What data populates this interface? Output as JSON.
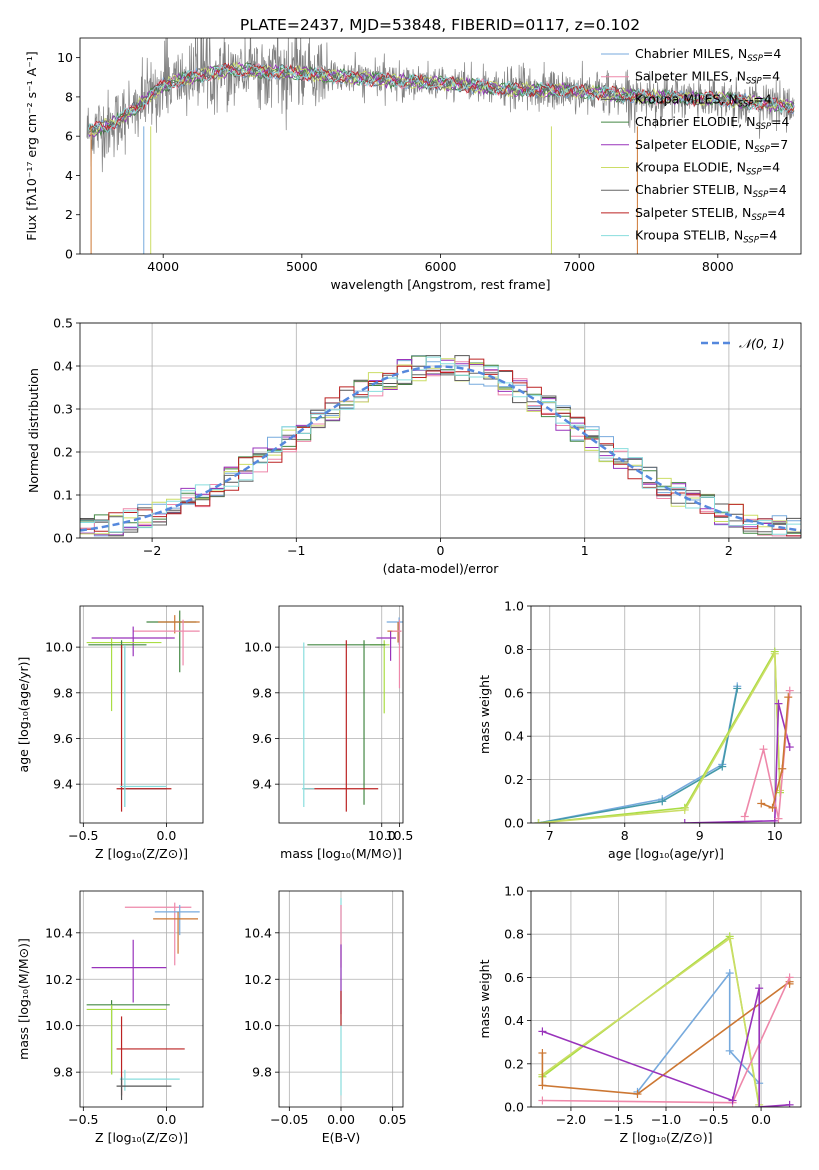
{
  "figure": {
    "title": "PLATE=2437, MJD=53848, FIBERID=0117, z=0.102"
  },
  "series_colors": [
    "#77aadd",
    "#ee88aa",
    "#555555",
    "#448844",
    "#9933bb",
    "#ccdd66",
    "#666666",
    "#bb2222",
    "#88dddd",
    "#cc7733",
    "#aadd44",
    "#4499aa"
  ],
  "chart_data": [
    {
      "id": "spectrum",
      "type": "line",
      "xlabel": "wavelength [Angstrom, rest frame]",
      "ylabel": "Flux [fλ10⁻¹⁷ erg cm⁻² s⁻¹ A⁻¹]",
      "xlim": [
        3400,
        8600
      ],
      "ylim": [
        0,
        11
      ],
      "xticks": [
        4000,
        5000,
        6000,
        7000,
        8000
      ],
      "yticks": [
        0,
        2,
        4,
        6,
        8,
        10
      ],
      "legend_position": "top-right",
      "legend": [
        {
          "label": "Chabrier MILES, N",
          "sub": "SSP",
          "eq": "=4",
          "color": "#77aadd"
        },
        {
          "label": "Salpeter MILES, N",
          "sub": "SSP",
          "eq": "=4",
          "color": "#ee88aa"
        },
        {
          "label": "Kroupa MILES, N",
          "sub": "SSP",
          "eq": "=4",
          "color": "#555555"
        },
        {
          "label": "Chabrier ELODIE, N",
          "sub": "SSP",
          "eq": "=4",
          "color": "#448844"
        },
        {
          "label": "Salpeter ELODIE, N",
          "sub": "SSP",
          "eq": "=7",
          "color": "#9933bb"
        },
        {
          "label": "Kroupa ELODIE, N",
          "sub": "SSP",
          "eq": "=4",
          "color": "#ccdd66"
        },
        {
          "label": "Chabrier STELIB, N",
          "sub": "SSP",
          "eq": "=4",
          "color": "#666666"
        },
        {
          "label": "Salpeter STELIB, N",
          "sub": "SSP",
          "eq": "=4",
          "color": "#bb2222"
        },
        {
          "label": "Kroupa STELIB, N",
          "sub": "SSP",
          "eq": "=4",
          "color": "#88dddd"
        }
      ],
      "data_series": {
        "wavelength_range": [
          3450,
          8550
        ],
        "continuum": [
          [
            3450,
            6.2
          ],
          [
            3650,
            6.7
          ],
          [
            3800,
            7.4
          ],
          [
            4000,
            8.6
          ],
          [
            4200,
            9.0
          ],
          [
            4500,
            9.4
          ],
          [
            5000,
            9.2
          ],
          [
            5500,
            8.9
          ],
          [
            6000,
            8.7
          ],
          [
            6500,
            8.4
          ],
          [
            7000,
            8.3
          ],
          [
            7500,
            8.0
          ],
          [
            8000,
            7.9
          ],
          [
            8550,
            7.5
          ]
        ],
        "model_series": [
          "Chabrier MILES",
          "Salpeter MILES",
          "Kroupa MILES",
          "Chabrier ELODIE",
          "Salpeter ELODIE",
          "Kroupa ELODIE",
          "Chabrier STELIB",
          "Salpeter STELIB",
          "Kroupa STELIB"
        ],
        "data_color": "#808080"
      }
    },
    {
      "id": "residuals",
      "type": "line",
      "xlabel": "(data-model)/error",
      "ylabel": "Normed distribution",
      "xlim": [
        -2.5,
        2.5
      ],
      "ylim": [
        0,
        0.5
      ],
      "xticks": [
        -2,
        -1,
        0,
        1,
        2
      ],
      "xtick_labels": [
        "−2",
        "−1",
        "0",
        "1",
        "2"
      ],
      "yticks": [
        0,
        0.1,
        0.2,
        0.3,
        0.4,
        0.5
      ],
      "ytick_labels": [
        "0.0",
        "0.1",
        "0.2",
        "0.3",
        "0.4",
        "0.5"
      ],
      "legend_position": "top-right",
      "legend_label": "𝒩(0, 1)",
      "reference_curve": {
        "name": "𝒩(0, 1)",
        "mean": 0,
        "sigma": 1,
        "color": "#5588dd",
        "dash": true
      },
      "bin_width": 0.1,
      "histograms_note": "nine step histograms, one per model"
    },
    {
      "id": "age_vs_Z",
      "type": "scatter",
      "xlabel": "Z [log₁₀(Z/Z⊙)]",
      "ylabel": "age  [log₁₀(age/yr)]",
      "xlim": [
        -0.52,
        0.22
      ],
      "ylim": [
        9.23,
        10.18
      ],
      "xticks": [
        -0.5,
        0.0
      ],
      "xtick_labels": [
        "−0.5",
        "0.0"
      ],
      "yticks": [
        9.4,
        9.6,
        9.8,
        10.0
      ],
      "ytick_labels": [
        "9.4",
        "9.6",
        "9.8",
        "10.0"
      ],
      "points": [
        {
          "x": 0.08,
          "y": 10.11,
          "xerr": [
            0.2,
            0.1
          ],
          "yerr": [
            0.22,
            0.05
          ],
          "color": "#448844"
        },
        {
          "x": 0.05,
          "y": 10.11,
          "xerr": [
            0.1,
            0.15
          ],
          "yerr": [
            0.05,
            0.03
          ],
          "color": "#cc7733"
        },
        {
          "x": 0.1,
          "y": 10.07,
          "xerr": [
            0.3,
            0.1
          ],
          "yerr": [
            0.15,
            0.05
          ],
          "color": "#ee88aa"
        },
        {
          "x": -0.2,
          "y": 10.04,
          "xerr": [
            0.25,
            0.25
          ],
          "yerr": [
            0.08,
            0.05
          ],
          "color": "#9933bb"
        },
        {
          "x": -0.33,
          "y": 10.02,
          "xerr": [
            0.15,
            0.3
          ],
          "yerr": [
            0.3,
            0.02
          ],
          "color": "#aadd44"
        },
        {
          "x": -0.27,
          "y": 10.01,
          "xerr": [
            0.2,
            0.15
          ],
          "yerr": [
            0.2,
            0.02
          ],
          "color": "#448844"
        },
        {
          "x": -0.25,
          "y": 9.38,
          "xerr": [
            0.03,
            0.25
          ],
          "yerr": [
            0.08,
            0.62
          ],
          "color": "#4499aa"
        },
        {
          "x": -0.27,
          "y": 9.38,
          "xerr": [
            0.03,
            0.3
          ],
          "yerr": [
            0.1,
            0.63
          ],
          "color": "#bb2222"
        },
        {
          "x": -0.25,
          "y": 9.39,
          "xerr": [
            0.03,
            0.25
          ],
          "yerr": [
            0.09,
            0.62
          ],
          "color": "#88dddd"
        }
      ]
    },
    {
      "id": "age_vs_mass",
      "type": "scatter",
      "xlabel": "mass [log₁₀(M/M⊙)]",
      "ylabel": "",
      "xlim": [
        7.1,
        10.6
      ],
      "ylim": [
        9.23,
        10.18
      ],
      "xticks": [
        7.5,
        10.0,
        10.5
      ],
      "xtick_labels": [
        "",
        "10.0",
        "10.5"
      ],
      "xticks_auto": [
        9.0,
        10.0,
        10.5
      ],
      "yticks": [
        9.4,
        9.6,
        9.8,
        10.0
      ],
      "ytick_labels": [
        "9.4",
        "9.6",
        "9.8",
        "10.0"
      ],
      "points": [
        {
          "x": 10.49,
          "y": 10.11,
          "xerr": [
            0.35,
            0.1
          ],
          "yerr": [
            0.1,
            0.02
          ],
          "color": "#77aadd"
        },
        {
          "x": 10.46,
          "y": 10.07,
          "xerr": [
            0.3,
            0.08
          ],
          "yerr": [
            0.05,
            0.04
          ],
          "color": "#cc7733"
        },
        {
          "x": 10.5,
          "y": 10.07,
          "xerr": [
            0.2,
            0.06
          ],
          "yerr": [
            0.25,
            0.05
          ],
          "color": "#ee88aa"
        },
        {
          "x": 10.25,
          "y": 10.04,
          "xerr": [
            0.4,
            0.15
          ],
          "yerr": [
            0.1,
            0.03
          ],
          "color": "#9933bb"
        },
        {
          "x": 10.07,
          "y": 10.01,
          "xerr": [
            0.4,
            0.15
          ],
          "yerr": [
            0.3,
            0.02
          ],
          "color": "#aadd44"
        },
        {
          "x": 9.5,
          "y": 10.01,
          "xerr": [
            1.6,
            0.6
          ],
          "yerr": [
            0.7,
            0.02
          ],
          "color": "#448844"
        },
        {
          "x": 9.0,
          "y": 9.38,
          "xerr": [
            1.2,
            0.9
          ],
          "yerr": [
            0.1,
            0.65
          ],
          "color": "#bb2222"
        },
        {
          "x": 7.8,
          "y": 9.38,
          "xerr": [
            0.05,
            0.3
          ],
          "yerr": [
            0.08,
            0.64
          ],
          "color": "#88dddd"
        }
      ]
    },
    {
      "id": "weight_vs_age",
      "type": "line",
      "xlabel": "age  [log₁₀(age/yr)]",
      "ylabel": "mass weight",
      "xlim": [
        6.75,
        10.35
      ],
      "ylim": [
        0,
        1.0
      ],
      "xticks": [
        7,
        8,
        9,
        10
      ],
      "yticks": [
        0,
        0.2,
        0.4,
        0.6,
        0.8,
        1.0
      ],
      "ytick_labels": [
        "0.0",
        "0.2",
        "0.4",
        "0.6",
        "0.8",
        "1.0"
      ],
      "series": [
        {
          "color": "#77aadd",
          "x": [
            6.85,
            8.5,
            9.3,
            9.5
          ],
          "y": [
            0.0,
            0.11,
            0.27,
            0.63
          ]
        },
        {
          "color": "#4499aa",
          "x": [
            6.85,
            8.5,
            9.3,
            9.5
          ],
          "y": [
            0.0,
            0.1,
            0.26,
            0.62
          ]
        },
        {
          "color": "#aadd44",
          "x": [
            6.85,
            8.8,
            10.0,
            10.07
          ],
          "y": [
            0.0,
            0.07,
            0.79,
            0.14
          ]
        },
        {
          "color": "#ccdd66",
          "x": [
            6.85,
            8.8,
            10.0,
            10.07
          ],
          "y": [
            0.0,
            0.06,
            0.78,
            0.15
          ]
        },
        {
          "color": "#9933bb",
          "x": [
            8.8,
            10.0,
            10.05,
            10.2
          ],
          "y": [
            0.0,
            0.01,
            0.55,
            0.35
          ]
        },
        {
          "color": "#ee88aa",
          "x": [
            9.6,
            9.85,
            10.05,
            10.2
          ],
          "y": [
            0.03,
            0.34,
            0.02,
            0.61
          ]
        },
        {
          "color": "#cc7733",
          "x": [
            9.82,
            9.97,
            10.1,
            10.18
          ],
          "y": [
            0.09,
            0.07,
            0.25,
            0.58
          ]
        }
      ]
    },
    {
      "id": "mass_vs_Z",
      "type": "scatter",
      "xlabel": "Z [log₁₀(Z/Z⊙)]",
      "ylabel": "mass [log₁₀(M/M⊙)]",
      "xlim": [
        -0.52,
        0.22
      ],
      "ylim": [
        9.65,
        10.58
      ],
      "xticks": [
        -0.5,
        0.0
      ],
      "xtick_labels": [
        "−0.5",
        "0.0"
      ],
      "yticks": [
        9.8,
        10.0,
        10.2,
        10.4
      ],
      "ytick_labels": [
        "9.8",
        "10.0",
        "10.2",
        "10.4"
      ],
      "points": [
        {
          "x": 0.05,
          "y": 10.51,
          "xerr": [
            0.3,
            0.1
          ],
          "yerr": [
            0.25,
            0.02
          ],
          "color": "#ee88aa"
        },
        {
          "x": 0.08,
          "y": 10.49,
          "xerr": [
            0.15,
            0.12
          ],
          "yerr": [
            0.1,
            0.03
          ],
          "color": "#77aadd"
        },
        {
          "x": 0.07,
          "y": 10.46,
          "xerr": [
            0.15,
            0.12
          ],
          "yerr": [
            0.15,
            0.03
          ],
          "color": "#cc7733"
        },
        {
          "x": -0.2,
          "y": 10.25,
          "xerr": [
            0.25,
            0.2
          ],
          "yerr": [
            0.15,
            0.12
          ],
          "color": "#9933bb"
        },
        {
          "x": -0.33,
          "y": 10.09,
          "xerr": [
            0.15,
            0.35
          ],
          "yerr": [
            0.3,
            0.02
          ],
          "color": "#448844"
        },
        {
          "x": -0.33,
          "y": 10.07,
          "xerr": [
            0.15,
            0.33
          ],
          "yerr": [
            0.28,
            0.02
          ],
          "color": "#aadd44"
        },
        {
          "x": -0.27,
          "y": 9.9,
          "xerr": [
            0.03,
            0.38
          ],
          "yerr": [
            0.2,
            0.14
          ],
          "color": "#bb2222"
        },
        {
          "x": -0.25,
          "y": 9.77,
          "xerr": [
            0.03,
            0.33
          ],
          "yerr": [
            0.05,
            0.04
          ],
          "color": "#88dddd"
        },
        {
          "x": -0.27,
          "y": 9.74,
          "xerr": [
            0.03,
            0.3
          ],
          "yerr": [
            0.06,
            0.04
          ],
          "color": "#555555"
        }
      ]
    },
    {
      "id": "mass_vs_EBV",
      "type": "scatter",
      "xlabel": "E(B-V)",
      "ylabel": "",
      "xlim": [
        -0.06,
        0.06
      ],
      "ylim": [
        9.65,
        10.58
      ],
      "xticks": [
        -0.05,
        0.0,
        0.05
      ],
      "xtick_labels": [
        "−0.05",
        "0.00",
        "0.05"
      ],
      "yticks": [
        9.8,
        10.0,
        10.2,
        10.4
      ],
      "ytick_labels": [
        "9.8",
        "10.0",
        "10.2",
        "10.4"
      ],
      "points": [
        {
          "x": 0.0,
          "y": 10.25,
          "xerr": [
            0,
            0
          ],
          "yerr": [
            0.55,
            0.3
          ],
          "color": "#88dddd"
        },
        {
          "x": 0.0,
          "y": 10.4,
          "xerr": [
            0,
            0
          ],
          "yerr": [
            0.15,
            0.12
          ],
          "color": "#ee88aa"
        },
        {
          "x": 0.0,
          "y": 10.2,
          "xerr": [
            0,
            0
          ],
          "yerr": [
            0.15,
            0.15
          ],
          "color": "#9933bb"
        },
        {
          "x": 0.0,
          "y": 10.05,
          "xerr": [
            0,
            0
          ],
          "yerr": [
            0.05,
            0.1
          ],
          "color": "#bb2222"
        }
      ]
    },
    {
      "id": "weight_vs_Z",
      "type": "line",
      "xlabel": "Z [log₁₀(Z/Z⊙)]",
      "ylabel": "mass weight",
      "xlim": [
        -2.42,
        0.42
      ],
      "ylim": [
        0,
        1.0
      ],
      "xticks": [
        -2.0,
        -1.5,
        -1.0,
        -0.5,
        0.0
      ],
      "xtick_labels": [
        "−2.0",
        "−1.5",
        "−1.0",
        "−0.5",
        "0.0"
      ],
      "yticks": [
        0,
        0.2,
        0.4,
        0.6,
        0.8,
        1.0
      ],
      "ytick_labels": [
        "0.0",
        "0.2",
        "0.4",
        "0.6",
        "0.8",
        "1.0"
      ],
      "series": [
        {
          "color": "#77aadd",
          "x": [
            -1.3,
            -0.33,
            -0.33,
            -0.02,
            -0.02
          ],
          "y": [
            0.07,
            0.62,
            0.26,
            0.11,
            0.0
          ]
        },
        {
          "color": "#aadd44",
          "x": [
            -2.3,
            -0.33,
            -0.02
          ],
          "y": [
            0.14,
            0.79,
            0.0
          ]
        },
        {
          "color": "#ccdd66",
          "x": [
            -2.3,
            -0.33,
            -0.02
          ],
          "y": [
            0.15,
            0.78,
            0.01
          ]
        },
        {
          "color": "#cc7733",
          "x": [
            -2.3,
            -2.3,
            -1.3,
            0.3,
            0.3
          ],
          "y": [
            0.25,
            0.1,
            0.06,
            0.58,
            0.57
          ]
        },
        {
          "color": "#ee88aa",
          "x": [
            -2.3,
            -0.3,
            0.3
          ],
          "y": [
            0.03,
            0.02,
            0.6
          ]
        },
        {
          "color": "#9933bb",
          "x": [
            -2.3,
            -0.3,
            -0.02,
            -0.02,
            0.3
          ],
          "y": [
            0.35,
            0.03,
            0.55,
            0.0,
            0.01
          ]
        }
      ]
    }
  ]
}
